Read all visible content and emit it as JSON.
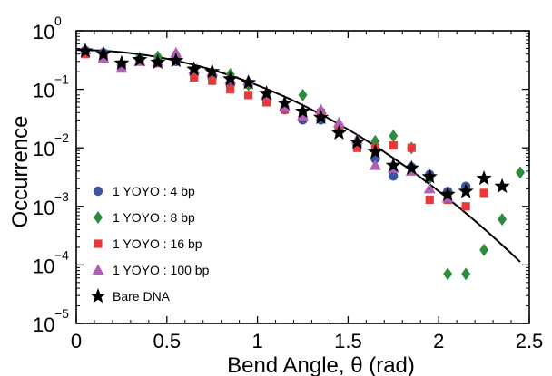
{
  "chart_data": {
    "type": "scatter",
    "xlabel": "Bend Angle, θ (rad)",
    "ylabel": "Occurrence",
    "xlim": [
      0,
      2.5
    ],
    "ylim_log10": [
      -5,
      0
    ],
    "y_scale": "log",
    "x_ticks": [
      "0",
      "0.5",
      "1",
      "1.5",
      "2",
      "2.5"
    ],
    "y_ticks": [
      {
        "base": "10",
        "exp": "0"
      },
      {
        "base": "10",
        "exp": "−1"
      },
      {
        "base": "10",
        "exp": "−2"
      },
      {
        "base": "10",
        "exp": "−3"
      },
      {
        "base": "10",
        "exp": "−4"
      },
      {
        "base": "10",
        "exp": "−5"
      }
    ],
    "legend_position": "bottom-left",
    "series": [
      {
        "name": "1 YOYO : 4 bp",
        "marker": "circle",
        "color": "#3b55a4",
        "points": [
          [
            0.05,
            0.46
          ],
          [
            0.15,
            0.42
          ],
          [
            0.25,
            0.26
          ],
          [
            0.35,
            0.33
          ],
          [
            0.45,
            0.3
          ],
          [
            0.55,
            0.3
          ],
          [
            0.65,
            0.19
          ],
          [
            0.75,
            0.16
          ],
          [
            0.85,
            0.12
          ],
          [
            0.95,
            0.12
          ],
          [
            1.05,
            0.07
          ],
          [
            1.15,
            0.045
          ],
          [
            1.25,
            0.03
          ],
          [
            1.35,
            0.03
          ],
          [
            1.45,
            0.022
          ],
          [
            1.55,
            0.011
          ],
          [
            1.65,
            0.0065
          ],
          [
            1.75,
            0.0033
          ],
          [
            1.85,
            0.0047
          ],
          [
            1.95,
            0.0035
          ],
          [
            2.05,
            0.0018
          ],
          [
            2.15,
            0.0022
          ]
        ]
      },
      {
        "name": "1 YOYO : 8 bp",
        "marker": "diamond",
        "color": "#2e8b3e",
        "points": [
          [
            0.05,
            0.43
          ],
          [
            0.15,
            0.36
          ],
          [
            0.25,
            0.25
          ],
          [
            0.35,
            0.33
          ],
          [
            0.45,
            0.36
          ],
          [
            0.55,
            0.4
          ],
          [
            0.65,
            0.2
          ],
          [
            0.75,
            0.16
          ],
          [
            0.85,
            0.18
          ],
          [
            0.95,
            0.12
          ],
          [
            1.05,
            0.075
          ],
          [
            1.15,
            0.05
          ],
          [
            1.25,
            0.08
          ],
          [
            1.35,
            0.04
          ],
          [
            1.45,
            0.025
          ],
          [
            1.55,
            0.012
          ],
          [
            1.65,
            0.013
          ],
          [
            1.75,
            0.016
          ],
          [
            1.85,
            0.01
          ],
          [
            1.95,
            0.003
          ],
          [
            2.05,
            7e-05
          ],
          [
            2.15,
            7e-05
          ],
          [
            2.25,
            0.00018
          ],
          [
            2.35,
            0.0006
          ],
          [
            2.45,
            0.0038
          ]
        ]
      },
      {
        "name": "1 YOYO : 16 bp",
        "marker": "square",
        "color": "#e8383a",
        "points": [
          [
            0.05,
            0.4
          ],
          [
            0.15,
            0.38
          ],
          [
            0.25,
            0.25
          ],
          [
            0.35,
            0.3
          ],
          [
            0.45,
            0.28
          ],
          [
            0.55,
            0.31
          ],
          [
            0.65,
            0.16
          ],
          [
            0.75,
            0.14
          ],
          [
            0.85,
            0.1
          ],
          [
            0.95,
            0.08
          ],
          [
            1.05,
            0.06
          ],
          [
            1.15,
            0.045
          ],
          [
            1.25,
            0.035
          ],
          [
            1.35,
            0.04
          ],
          [
            1.45,
            0.022
          ],
          [
            1.55,
            0.01
          ],
          [
            1.65,
            0.01
          ],
          [
            1.75,
            0.011
          ],
          [
            1.85,
            0.01
          ],
          [
            1.95,
            0.0013
          ],
          [
            2.05,
            0.0013
          ],
          [
            2.15,
            0.001
          ],
          [
            2.25,
            0.0017
          ]
        ]
      },
      {
        "name": "1 YOYO : 100 bp",
        "marker": "triangle",
        "color": "#b15fb5",
        "points": [
          [
            0.05,
            0.48
          ],
          [
            0.15,
            0.34
          ],
          [
            0.25,
            0.23
          ],
          [
            0.35,
            0.3
          ],
          [
            0.45,
            0.3
          ],
          [
            0.55,
            0.42
          ],
          [
            0.65,
            0.22
          ],
          [
            0.75,
            0.2
          ],
          [
            0.85,
            0.15
          ],
          [
            0.95,
            0.14
          ],
          [
            1.05,
            0.08
          ],
          [
            1.15,
            0.05
          ],
          [
            1.25,
            0.035
          ],
          [
            1.35,
            0.045
          ],
          [
            1.45,
            0.027
          ],
          [
            1.55,
            0.014
          ],
          [
            1.65,
            0.005
          ],
          [
            1.75,
            0.0045
          ],
          [
            1.85,
            0.004
          ],
          [
            1.95,
            0.002
          ],
          [
            2.05,
            0.0014
          ]
        ]
      },
      {
        "name": "Bare DNA",
        "marker": "star",
        "color": "#000000",
        "points": [
          [
            0.05,
            0.45
          ],
          [
            0.15,
            0.4
          ],
          [
            0.25,
            0.28
          ],
          [
            0.35,
            0.32
          ],
          [
            0.45,
            0.29
          ],
          [
            0.55,
            0.31
          ],
          [
            0.65,
            0.22
          ],
          [
            0.75,
            0.2
          ],
          [
            0.85,
            0.15
          ],
          [
            0.95,
            0.13
          ],
          [
            1.05,
            0.085
          ],
          [
            1.15,
            0.058
          ],
          [
            1.25,
            0.042
          ],
          [
            1.35,
            0.033
          ],
          [
            1.45,
            0.018
          ],
          [
            1.55,
            0.0125
          ],
          [
            1.65,
            0.0085
          ],
          [
            1.75,
            0.005
          ],
          [
            1.85,
            0.0045
          ],
          [
            1.95,
            0.0032
          ],
          [
            2.05,
            0.0016
          ],
          [
            2.15,
            0.0018
          ],
          [
            2.25,
            0.003
          ],
          [
            2.35,
            0.0022
          ]
        ]
      }
    ],
    "fit_curve": {
      "type": "gaussian",
      "A": 0.47,
      "sigma": 0.6,
      "x_range": [
        0,
        2.45
      ]
    }
  }
}
